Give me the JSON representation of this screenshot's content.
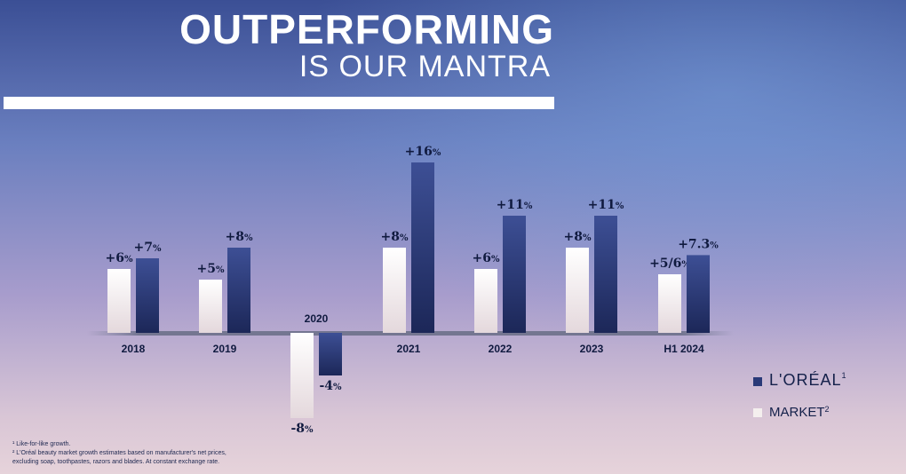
{
  "title": {
    "line1": "OUTPERFORMING",
    "line2": "IS OUR MANTRA"
  },
  "chart_data": {
    "type": "bar",
    "categories": [
      "2018",
      "2019",
      "2020",
      "2021",
      "2022",
      "2023",
      "H1 2024"
    ],
    "series": [
      {
        "name": "MARKET",
        "values": [
          6,
          5,
          -8,
          8,
          6,
          8,
          5.5
        ],
        "labels": [
          "+6%",
          "+5%",
          "-8%",
          "+8%",
          "+6%",
          "+8%",
          "+5/6%"
        ],
        "color": "#f4efee"
      },
      {
        "name": "L'ORÉAL",
        "values": [
          7,
          8,
          -4,
          16,
          11,
          11,
          7.3
        ],
        "labels": [
          "+7%",
          "+8%",
          "-4%",
          "+16%",
          "+11%",
          "+11%",
          "+7.3%"
        ],
        "color": "#2a3a78"
      }
    ],
    "ylim": [
      -8,
      16
    ]
  },
  "legend": {
    "items": [
      {
        "label": "L'ORÉAL",
        "sup": "1",
        "color": "#2a3a78"
      },
      {
        "label": "MARKET",
        "sup": "2",
        "color": "#f4efee"
      }
    ]
  },
  "footnotes": [
    "¹ Like-for-like growth.",
    "² L'Oréal beauty market growth estimates based on manufacturer's net prices,",
    "excluding soap, toothpastes, razors and blades. At constant exchange rate."
  ]
}
